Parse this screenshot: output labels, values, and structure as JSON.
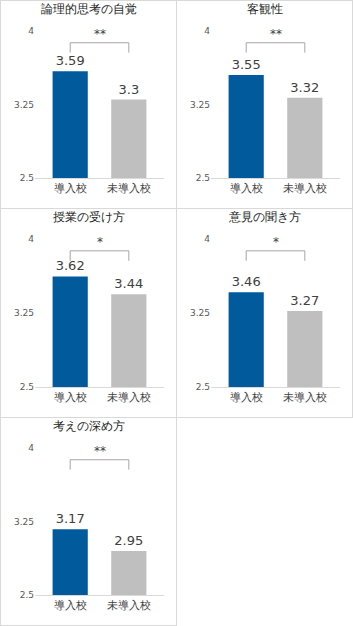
{
  "chart_data": [
    {
      "type": "bar",
      "title": "論理的思考の自覚",
      "categories": [
        "導入校",
        "未導入校"
      ],
      "values": [
        3.59,
        3.3
      ],
      "colors": [
        "#005a9c",
        "#bfbfbf"
      ],
      "ylim": [
        2.5,
        4
      ],
      "yticks": [
        2.5,
        3.25,
        4
      ],
      "grid": false,
      "data_labels": true,
      "annotations": [
        "**"
      ]
    },
    {
      "type": "bar",
      "title": "客観性",
      "categories": [
        "導入校",
        "未導入校"
      ],
      "values": [
        3.55,
        3.32
      ],
      "colors": [
        "#005a9c",
        "#bfbfbf"
      ],
      "ylim": [
        2.5,
        4
      ],
      "yticks": [
        2.5,
        3.25,
        4
      ],
      "grid": false,
      "data_labels": true,
      "annotations": [
        "**"
      ]
    },
    {
      "type": "bar",
      "title": "授業の受け方",
      "categories": [
        "導入校",
        "未導入校"
      ],
      "values": [
        3.62,
        3.44
      ],
      "colors": [
        "#005a9c",
        "#bfbfbf"
      ],
      "ylim": [
        2.5,
        4
      ],
      "yticks": [
        2.5,
        3.25,
        4
      ],
      "grid": false,
      "data_labels": true,
      "annotations": [
        "*"
      ]
    },
    {
      "type": "bar",
      "title": "意見の聞き方",
      "categories": [
        "導入校",
        "未導入校"
      ],
      "values": [
        3.46,
        3.27
      ],
      "colors": [
        "#005a9c",
        "#bfbfbf"
      ],
      "ylim": [
        2.5,
        4
      ],
      "yticks": [
        2.5,
        3.25,
        4
      ],
      "grid": false,
      "data_labels": true,
      "annotations": [
        "*"
      ]
    },
    {
      "type": "bar",
      "title": "考えの深め方",
      "categories": [
        "導入校",
        "未導入校"
      ],
      "values": [
        3.17,
        2.95
      ],
      "colors": [
        "#005a9c",
        "#bfbfbf"
      ],
      "ylim": [
        2.5,
        4
      ],
      "yticks": [
        2.5,
        3.25,
        4
      ],
      "grid": false,
      "data_labels": true,
      "annotations": [
        "**"
      ]
    }
  ]
}
